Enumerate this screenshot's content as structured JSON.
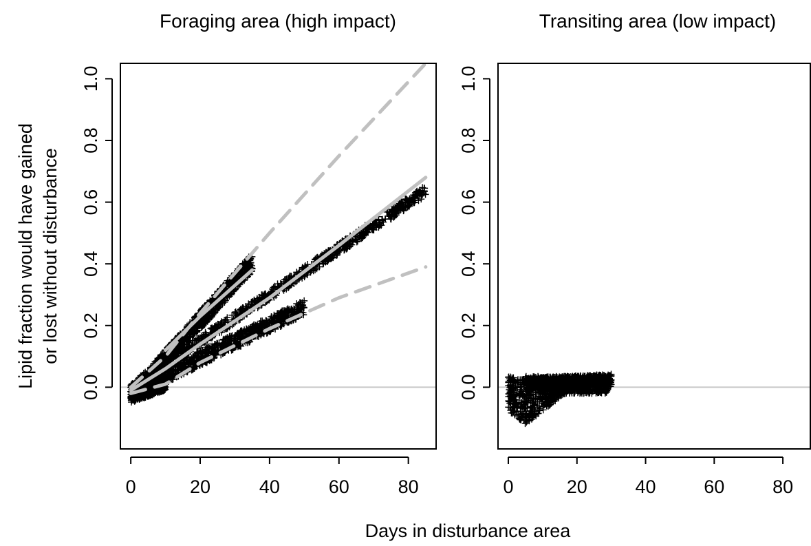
{
  "chart_data": [
    {
      "type": "scatter",
      "title": "Foraging area (high impact)",
      "xlabel": "Days in disturbance area",
      "ylabel": [
        "Lipid fraction would have gained",
        "or lost without disturbance"
      ],
      "xlim": [
        -3,
        88
      ],
      "ylim": [
        -0.2,
        1.05
      ],
      "xticks": [
        0,
        20,
        40,
        60,
        80
      ],
      "yticks": [
        0.0,
        0.2,
        0.4,
        0.6,
        0.8,
        1.0
      ],
      "xtick_labels": [
        "0",
        "20",
        "40",
        "60",
        "80"
      ],
      "ytick_labels": [
        "0.0",
        "0.2",
        "0.4",
        "0.6",
        "0.8",
        "1.0"
      ],
      "reference_line": {
        "y": 0,
        "color": "#c8c8c8"
      },
      "series": [
        {
          "marker": "+",
          "color": "#000000",
          "clouds": [
            {
              "x_range": [
                0,
                85
              ],
              "y_start": 0.0,
              "slope": 0.0075,
              "spread": 0.018
            },
            {
              "x_range": [
                5,
                35
              ],
              "y_start": 0.03,
              "slope": 0.0125,
              "spread": 0.03
            },
            {
              "x_range": [
                3,
                50
              ],
              "y_start": 0.0,
              "slope": 0.0055,
              "spread": 0.025
            },
            {
              "x_range": [
                0,
                10
              ],
              "y_start": -0.02,
              "slope": 0.004,
              "spread": 0.03
            }
          ]
        },
        {
          "line": "solid",
          "color": "#c0c0c0",
          "points": [
            [
              0,
              -0.01
            ],
            [
              10,
              0.06
            ],
            [
              20,
              0.14
            ],
            [
              40,
              0.29
            ],
            [
              60,
              0.46
            ],
            [
              85,
              0.68
            ]
          ]
        },
        {
          "line": "solid",
          "color": "#c0c0c0",
          "points": [
            [
              10,
              0.12
            ],
            [
              20,
              0.23
            ],
            [
              30,
              0.33
            ],
            [
              35,
              0.38
            ]
          ]
        },
        {
          "line": "dashed",
          "color": "#c0c0c0",
          "points": [
            [
              0,
              0.0
            ],
            [
              10,
              0.1
            ],
            [
              20,
              0.24
            ],
            [
              40,
              0.5
            ],
            [
              60,
              0.75
            ],
            [
              85,
              1.05
            ]
          ]
        },
        {
          "line": "dashed",
          "color": "#c0c0c0",
          "points": [
            [
              0,
              -0.02
            ],
            [
              10,
              0.01
            ],
            [
              20,
              0.08
            ],
            [
              40,
              0.19
            ],
            [
              60,
              0.29
            ],
            [
              85,
              0.39
            ]
          ]
        }
      ]
    },
    {
      "type": "scatter",
      "title": "Transiting area (low impact)",
      "xlim": [
        -3,
        88
      ],
      "ylim": [
        -0.2,
        1.05
      ],
      "xticks": [
        0,
        20,
        40,
        60,
        80
      ],
      "yticks": [
        0.0,
        0.2,
        0.4,
        0.6,
        0.8,
        1.0
      ],
      "xtick_labels": [
        "0",
        "20",
        "40",
        "60",
        "80"
      ],
      "ytick_labels": [
        "0.0",
        "0.2",
        "0.4",
        "0.6",
        "0.8",
        "1.0"
      ],
      "reference_line": {
        "y": 0,
        "color": "#c8c8c8"
      },
      "series": [
        {
          "marker": "+",
          "color": "#000000",
          "clouds": [
            {
              "x_range": [
                0,
                29
              ],
              "y_top": 0.035,
              "y_bottom_min": -0.12,
              "min_at_x": 5
            },
            {
              "x_range": [
                5,
                30
              ],
              "y_start": 0.01,
              "slope": 0.0005,
              "spread": 0.02
            }
          ]
        }
      ]
    }
  ]
}
